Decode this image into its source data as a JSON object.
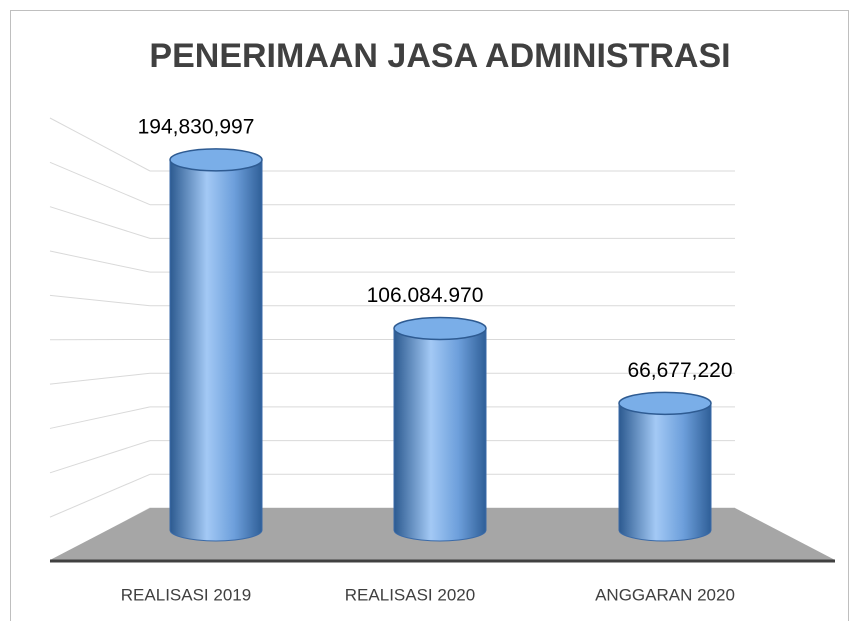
{
  "chart_data": {
    "type": "bar3d",
    "title": "PENERIMAAN JASA ADMINISTRASI",
    "categories": [
      "REALISASI 2019",
      "REALISASI 2020",
      "ANGGARAN 2020"
    ],
    "values": [
      194830997,
      106084970,
      66677220
    ],
    "value_labels": [
      "194,830,997",
      "106.084.970",
      "66,677,220"
    ],
    "color": "#4f81bd",
    "ylim": [
      0,
      200000000
    ],
    "yticks": [
      0,
      20000000,
      40000000,
      60000000,
      80000000,
      100000000,
      120000000,
      140000000,
      160000000,
      180000000,
      200000000
    ],
    "grid": true
  }
}
